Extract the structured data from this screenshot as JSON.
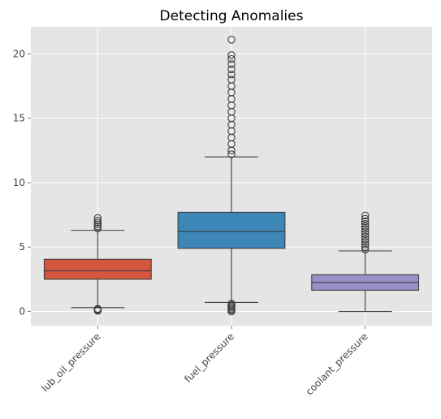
{
  "chart_data": {
    "type": "box",
    "title": "Detecting Anomalies",
    "xlabel": "",
    "ylabel": "",
    "categories": [
      "lub_oil_pressure",
      "fuel_pressure",
      "coolant_pressure"
    ],
    "ylim": [
      -1.1,
      22.1
    ],
    "yticks": [
      0,
      5,
      10,
      15,
      20
    ],
    "grid": true,
    "legend": "none",
    "colors": {
      "background": "#e5e5e5",
      "grid": "#ffffff",
      "line": "#3d3d3d"
    },
    "series": [
      {
        "category": "lub_oil_pressure",
        "color": "#d5553f",
        "whisker_low": 0.3,
        "q1": 2.5,
        "median": 3.15,
        "q3": 4.05,
        "whisker_high": 6.3,
        "outliers_low": [
          0.05,
          0.1,
          0.15,
          0.2
        ],
        "outliers_high": [
          6.45,
          6.6,
          6.75,
          6.9,
          7.05,
          7.25
        ]
      },
      {
        "category": "fuel_pressure",
        "color": "#3d87b8",
        "whisker_low": 0.7,
        "q1": 4.9,
        "median": 6.2,
        "q3": 7.7,
        "whisker_high": 12.0,
        "outliers_low": [
          0.0,
          0.1,
          0.2,
          0.3,
          0.4,
          0.5,
          0.6
        ],
        "outliers_high": [
          12.2,
          12.5,
          13.0,
          13.5,
          14.0,
          14.5,
          15.0,
          15.5,
          16.0,
          16.5,
          17.0,
          17.5,
          18.0,
          18.4,
          18.8,
          19.2,
          19.6,
          19.9,
          21.1
        ]
      },
      {
        "category": "coolant_pressure",
        "color": "#9b8fc7",
        "whisker_low": 0.0,
        "q1": 1.65,
        "median": 2.25,
        "q3": 2.85,
        "whisker_high": 4.7,
        "outliers_low": [],
        "outliers_high": [
          4.8,
          5.0,
          5.2,
          5.4,
          5.6,
          5.8,
          6.0,
          6.2,
          6.4,
          6.6,
          6.8,
          7.0,
          7.2,
          7.45
        ]
      }
    ]
  }
}
